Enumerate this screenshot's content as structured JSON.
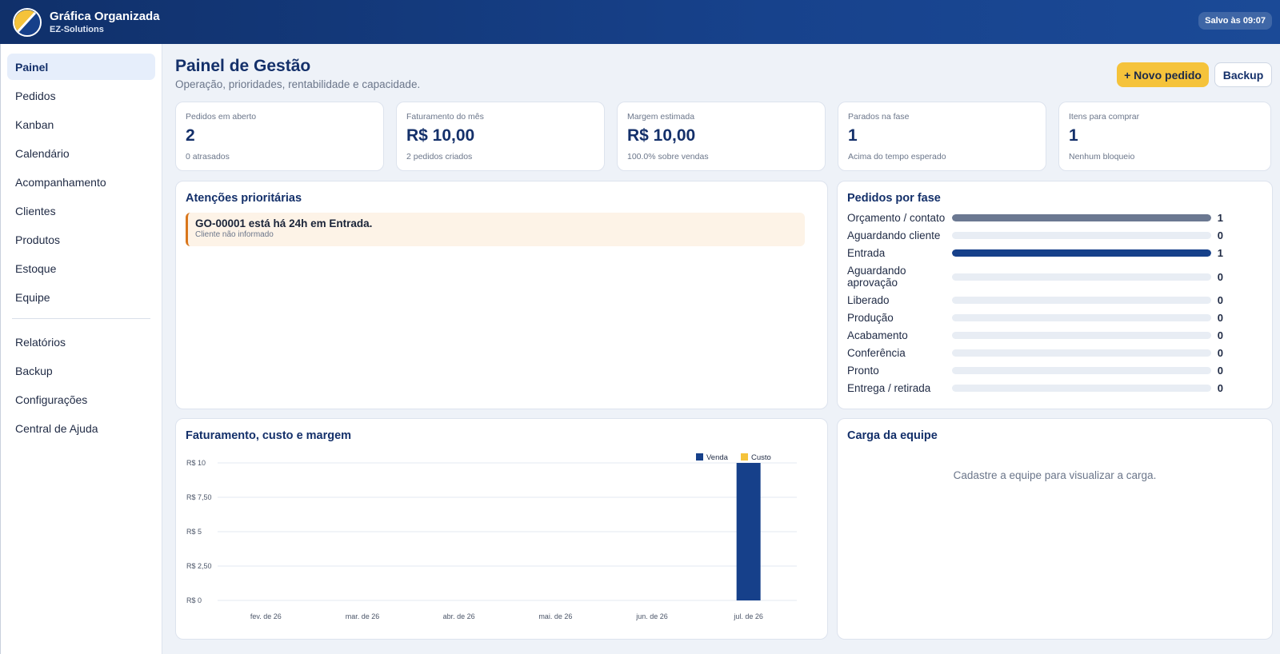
{
  "app": {
    "title": "Gráfica Organizada",
    "subtitle": "EZ-Solutions",
    "saved_status": "Salvo às 09:07"
  },
  "sidebar": {
    "items": [
      {
        "label": "Painel",
        "active": true
      },
      {
        "label": "Pedidos"
      },
      {
        "label": "Kanban"
      },
      {
        "label": "Calendário"
      },
      {
        "label": "Acompanhamento"
      },
      {
        "label": "Clientes"
      },
      {
        "label": "Produtos"
      },
      {
        "label": "Estoque"
      },
      {
        "label": "Equipe"
      }
    ],
    "secondary": [
      {
        "label": "Relatórios"
      },
      {
        "label": "Backup"
      },
      {
        "label": "Configurações"
      },
      {
        "label": "Central de Ajuda"
      }
    ]
  },
  "header": {
    "title": "Painel de Gestão",
    "subtitle": "Operação, prioridades, rentabilidade e capacidade.",
    "new_order_label": "+ Novo pedido",
    "backup_label": "Backup"
  },
  "kpis": [
    {
      "label": "Pedidos em aberto",
      "value": "2",
      "note": "0 atrasados"
    },
    {
      "label": "Faturamento do mês",
      "value": "R$ 10,00",
      "note": "2 pedidos criados"
    },
    {
      "label": "Margem estimada",
      "value": "R$ 10,00",
      "note": "100.0% sobre vendas"
    },
    {
      "label": "Parados na fase",
      "value": "1",
      "note": "Acima do tempo esperado"
    },
    {
      "label": "Itens para comprar",
      "value": "1",
      "note": "Nenhum bloqueio"
    }
  ],
  "priorities": {
    "title": "Atenções prioritárias",
    "items": [
      {
        "title": "GO-00001 está há 24h em Entrada.",
        "sub": "Cliente não informado"
      }
    ]
  },
  "phases": {
    "title": "Pedidos por fase",
    "max": 1,
    "items": [
      {
        "label": "Orçamento / contato",
        "count": 1,
        "color": "#6b7891"
      },
      {
        "label": "Aguardando cliente",
        "count": 0
      },
      {
        "label": "Entrada",
        "count": 1,
        "color": "#16408a"
      },
      {
        "label": "Aguardando aprovação",
        "count": 0
      },
      {
        "label": "Liberado",
        "count": 0
      },
      {
        "label": "Produção",
        "count": 0
      },
      {
        "label": "Acabamento",
        "count": 0
      },
      {
        "label": "Conferência",
        "count": 0
      },
      {
        "label": "Pronto",
        "count": 0
      },
      {
        "label": "Entrega / retirada",
        "count": 0
      }
    ]
  },
  "team_load": {
    "title": "Carga da equipe",
    "empty_message": "Cadastre a equipe para visualizar a carga."
  },
  "chart_data": {
    "type": "bar",
    "title": "Faturamento, custo e margem",
    "categories": [
      "fev. de 26",
      "mar. de 26",
      "abr. de 26",
      "mai. de 26",
      "jun. de 26",
      "jul. de 26"
    ],
    "series": [
      {
        "name": "Venda",
        "values": [
          0,
          0,
          0,
          0,
          0,
          10
        ],
        "color": "#16408a"
      },
      {
        "name": "Custo",
        "values": [
          0,
          0,
          0,
          0,
          0,
          0
        ],
        "color": "#f5c33b"
      }
    ],
    "ylim": [
      0,
      10
    ],
    "yticks": [
      0,
      2.5,
      5,
      7.5,
      10
    ],
    "ytick_labels": [
      "R$ 0",
      "R$ 2,50",
      "R$ 5",
      "R$ 7,50",
      "R$ 10"
    ],
    "grid": true,
    "legend": "top-right"
  }
}
